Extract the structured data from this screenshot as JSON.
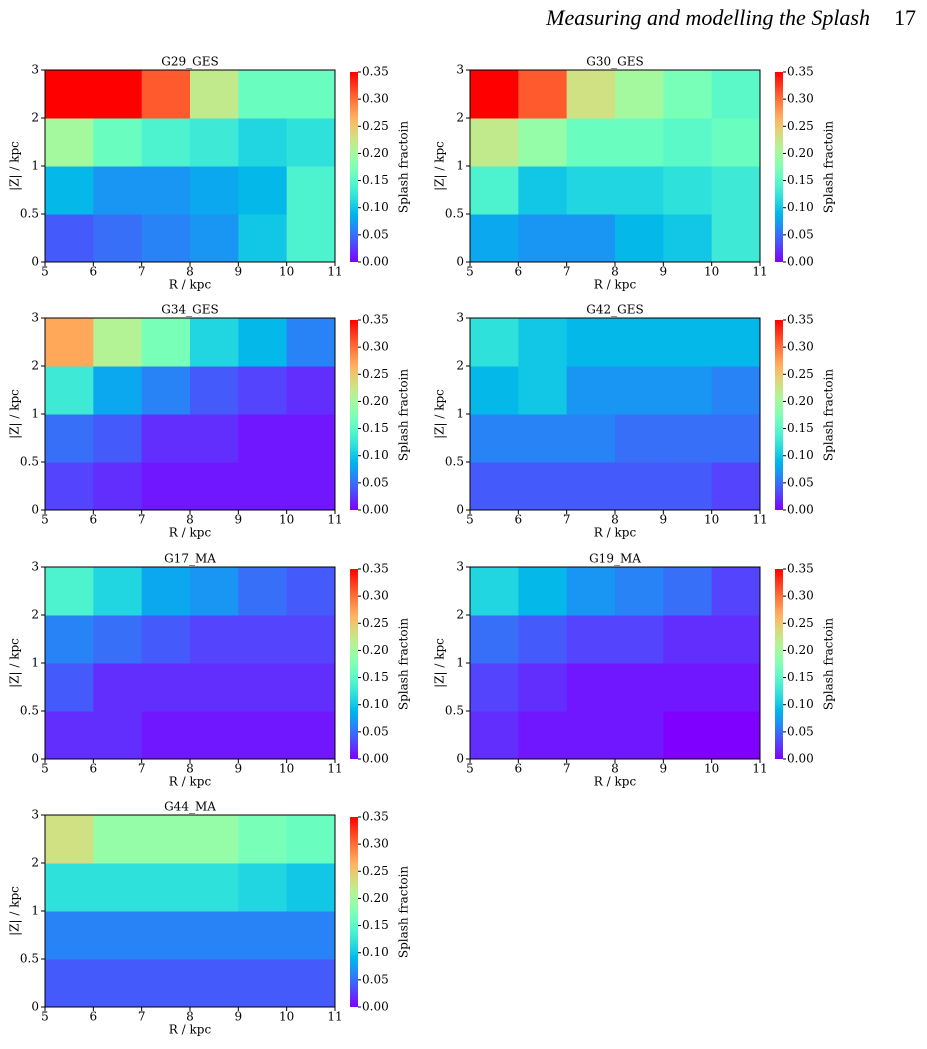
{
  "header": {
    "title": "Measuring and modelling the Splash",
    "page": "17"
  },
  "chart_data": [
    {
      "type": "heatmap",
      "title": "G29_GES",
      "xlabel": "R / kpc",
      "ylabel": "|Z| / kpc",
      "colorbar_label": "Splash fractoin",
      "colormap": "rainbow",
      "xticks": [
        5,
        6,
        7,
        8,
        9,
        10,
        11
      ],
      "yticks": [
        0,
        0.5,
        1,
        2,
        3
      ],
      "clim": [
        0,
        0.35
      ],
      "cticks": [
        {
          "value": 0,
          "label": "0.00"
        },
        {
          "value": 0.05,
          "label": "0.05"
        },
        {
          "value": 0.1,
          "label": "0.10"
        },
        {
          "value": 0.15,
          "label": "0.15"
        },
        {
          "value": 0.2,
          "label": "0.20"
        },
        {
          "value": 0.25,
          "label": "0.25"
        },
        {
          "value": 0.3,
          "label": "0.30"
        },
        {
          "value": 0.35,
          "label": "0.35"
        }
      ],
      "values": [
        [
          0.04,
          0.05,
          0.06,
          0.07,
          0.1,
          0.14
        ],
        [
          0.09,
          0.07,
          0.07,
          0.08,
          0.09,
          0.14
        ],
        [
          0.2,
          0.16,
          0.14,
          0.13,
          0.11,
          0.12
        ],
        [
          0.35,
          0.35,
          0.31,
          0.22,
          0.16,
          0.16
        ]
      ]
    },
    {
      "type": "heatmap",
      "title": "G30_GES",
      "xlabel": "R / kpc",
      "ylabel": "|Z| / kpc",
      "colorbar_label": "Splash fractoin",
      "colormap": "rainbow",
      "xticks": [
        5,
        6,
        7,
        8,
        9,
        10,
        11
      ],
      "yticks": [
        0,
        0.5,
        1,
        2,
        3
      ],
      "clim": [
        0,
        0.35
      ],
      "cticks": [
        {
          "value": 0,
          "label": "0.00"
        },
        {
          "value": 0.05,
          "label": "0.05"
        },
        {
          "value": 0.1,
          "label": "0.10"
        },
        {
          "value": 0.15,
          "label": "0.15"
        },
        {
          "value": 0.2,
          "label": "0.20"
        },
        {
          "value": 0.25,
          "label": "0.25"
        },
        {
          "value": 0.3,
          "label": "0.30"
        },
        {
          "value": 0.35,
          "label": "0.35"
        }
      ],
      "values": [
        [
          0.08,
          0.07,
          0.07,
          0.09,
          0.1,
          0.13
        ],
        [
          0.14,
          0.1,
          0.11,
          0.11,
          0.12,
          0.13
        ],
        [
          0.22,
          0.19,
          0.16,
          0.16,
          0.15,
          0.16
        ],
        [
          0.35,
          0.31,
          0.23,
          0.2,
          0.17,
          0.15
        ]
      ]
    },
    {
      "type": "heatmap",
      "title": "G34_GES",
      "xlabel": "R / kpc",
      "ylabel": "|Z| / kpc",
      "colorbar_label": "Splash fractoin",
      "colormap": "rainbow",
      "xticks": [
        5,
        6,
        7,
        8,
        9,
        10,
        11
      ],
      "yticks": [
        0,
        0.5,
        1,
        2,
        3
      ],
      "clim": [
        0,
        0.35
      ],
      "cticks": [
        {
          "value": 0,
          "label": "0.00"
        },
        {
          "value": 0.05,
          "label": "0.05"
        },
        {
          "value": 0.1,
          "label": "0.10"
        },
        {
          "value": 0.15,
          "label": "0.15"
        },
        {
          "value": 0.2,
          "label": "0.20"
        },
        {
          "value": 0.25,
          "label": "0.25"
        },
        {
          "value": 0.3,
          "label": "0.30"
        },
        {
          "value": 0.35,
          "label": "0.35"
        }
      ],
      "values": [
        [
          0.03,
          0.02,
          0.01,
          0.01,
          0.01,
          0.01
        ],
        [
          0.05,
          0.04,
          0.02,
          0.02,
          0.01,
          0.01
        ],
        [
          0.13,
          0.08,
          0.06,
          0.04,
          0.03,
          0.02
        ],
        [
          0.27,
          0.21,
          0.17,
          0.11,
          0.09,
          0.06
        ]
      ]
    },
    {
      "type": "heatmap",
      "title": "G42_GES",
      "xlabel": "R / kpc",
      "ylabel": "|Z| / kpc",
      "colorbar_label": "Splash fractoin",
      "colormap": "rainbow",
      "xticks": [
        5,
        6,
        7,
        8,
        9,
        10,
        11
      ],
      "yticks": [
        0,
        0.5,
        1,
        2,
        3
      ],
      "clim": [
        0,
        0.35
      ],
      "cticks": [
        {
          "value": 0,
          "label": "0.00"
        },
        {
          "value": 0.05,
          "label": "0.05"
        },
        {
          "value": 0.1,
          "label": "0.10"
        },
        {
          "value": 0.15,
          "label": "0.15"
        },
        {
          "value": 0.2,
          "label": "0.20"
        },
        {
          "value": 0.25,
          "label": "0.25"
        },
        {
          "value": 0.3,
          "label": "0.30"
        },
        {
          "value": 0.35,
          "label": "0.35"
        }
      ],
      "values": [
        [
          0.04,
          0.04,
          0.04,
          0.04,
          0.04,
          0.03
        ],
        [
          0.06,
          0.06,
          0.06,
          0.05,
          0.05,
          0.05
        ],
        [
          0.09,
          0.1,
          0.07,
          0.07,
          0.07,
          0.06
        ],
        [
          0.12,
          0.1,
          0.09,
          0.09,
          0.09,
          0.09
        ]
      ]
    },
    {
      "type": "heatmap",
      "title": "G17_MA",
      "xlabel": "R / kpc",
      "ylabel": "|Z| / kpc",
      "colorbar_label": "Splash fractoin",
      "colormap": "rainbow",
      "xticks": [
        5,
        6,
        7,
        8,
        9,
        10,
        11
      ],
      "yticks": [
        0,
        0.5,
        1,
        2,
        3
      ],
      "clim": [
        0,
        0.35
      ],
      "cticks": [
        {
          "value": 0,
          "label": "0.00"
        },
        {
          "value": 0.05,
          "label": "0.05"
        },
        {
          "value": 0.1,
          "label": "0.10"
        },
        {
          "value": 0.15,
          "label": "0.15"
        },
        {
          "value": 0.2,
          "label": "0.20"
        },
        {
          "value": 0.25,
          "label": "0.25"
        },
        {
          "value": 0.3,
          "label": "0.30"
        },
        {
          "value": 0.35,
          "label": "0.35"
        }
      ],
      "values": [
        [
          0.02,
          0.02,
          0.01,
          0.01,
          0.01,
          0.01
        ],
        [
          0.04,
          0.02,
          0.02,
          0.02,
          0.02,
          0.02
        ],
        [
          0.06,
          0.05,
          0.04,
          0.03,
          0.03,
          0.03
        ],
        [
          0.14,
          0.11,
          0.08,
          0.07,
          0.05,
          0.04
        ]
      ]
    },
    {
      "type": "heatmap",
      "title": "G19_MA",
      "xlabel": "R / kpc",
      "ylabel": "|Z| / kpc",
      "colorbar_label": "Splash fractoin",
      "colormap": "rainbow",
      "xticks": [
        5,
        6,
        7,
        8,
        9,
        10,
        11
      ],
      "yticks": [
        0,
        0.5,
        1,
        2,
        3
      ],
      "clim": [
        0,
        0.35
      ],
      "cticks": [
        {
          "value": 0,
          "label": "0.00"
        },
        {
          "value": 0.05,
          "label": "0.05"
        },
        {
          "value": 0.1,
          "label": "0.10"
        },
        {
          "value": 0.15,
          "label": "0.15"
        },
        {
          "value": 0.2,
          "label": "0.20"
        },
        {
          "value": 0.25,
          "label": "0.25"
        },
        {
          "value": 0.3,
          "label": "0.30"
        },
        {
          "value": 0.35,
          "label": "0.35"
        }
      ],
      "values": [
        [
          0.02,
          0.01,
          0.01,
          0.01,
          0.0,
          0.0
        ],
        [
          0.03,
          0.02,
          0.01,
          0.01,
          0.01,
          0.01
        ],
        [
          0.05,
          0.04,
          0.03,
          0.03,
          0.02,
          0.02
        ],
        [
          0.11,
          0.09,
          0.07,
          0.06,
          0.05,
          0.03
        ]
      ]
    },
    {
      "type": "heatmap",
      "title": "G44_MA",
      "xlabel": "R / kpc",
      "ylabel": "|Z| / kpc",
      "colorbar_label": "Splash fractoin",
      "colormap": "rainbow",
      "xticks": [
        5,
        6,
        7,
        8,
        9,
        10,
        11
      ],
      "yticks": [
        0,
        0.5,
        1,
        2,
        3
      ],
      "clim": [
        0,
        0.35
      ],
      "cticks": [
        {
          "value": 0,
          "label": "0.00"
        },
        {
          "value": 0.05,
          "label": "0.05"
        },
        {
          "value": 0.1,
          "label": "0.10"
        },
        {
          "value": 0.15,
          "label": "0.15"
        },
        {
          "value": 0.2,
          "label": "0.20"
        },
        {
          "value": 0.25,
          "label": "0.25"
        },
        {
          "value": 0.3,
          "label": "0.30"
        },
        {
          "value": 0.35,
          "label": "0.35"
        }
      ],
      "values": [
        [
          0.04,
          0.04,
          0.04,
          0.04,
          0.04,
          0.04
        ],
        [
          0.06,
          0.06,
          0.06,
          0.06,
          0.06,
          0.06
        ],
        [
          0.12,
          0.12,
          0.12,
          0.12,
          0.11,
          0.1
        ],
        [
          0.23,
          0.19,
          0.19,
          0.19,
          0.17,
          0.16
        ]
      ]
    }
  ]
}
